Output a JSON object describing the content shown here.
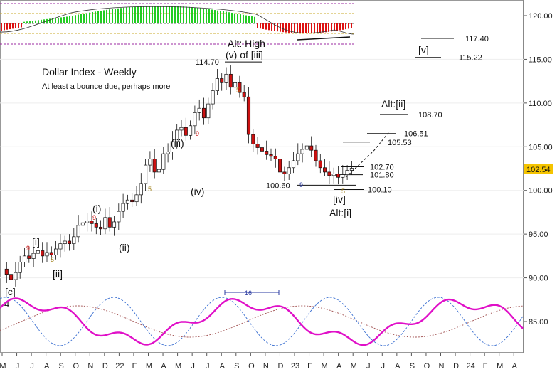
{
  "chart_data": {
    "type": "candlestick",
    "title": "Dollar Index - Weekly",
    "subtitle": "At least a bounce due, perhaps more",
    "ylim": [
      81,
      122
    ],
    "y_ticks": [
      "120.00",
      "115.00",
      "110.00",
      "105.00",
      "100.00",
      "95.00",
      "90.00",
      "85.00"
    ],
    "x_ticks": [
      "M",
      "J",
      "J",
      "A",
      "S",
      "O",
      "N",
      "D",
      "22",
      "F",
      "M",
      "A",
      "M",
      "J",
      "J",
      "A",
      "S",
      "O",
      "N",
      "D",
      "23",
      "F",
      "M",
      "A",
      "M",
      "J",
      "J",
      "A",
      "S",
      "O",
      "N",
      "D",
      "24",
      "F",
      "M",
      "A"
    ],
    "last_price": "102.54",
    "last_price_color": "#f5c400",
    "up_color": "#ffffff",
    "down_color": "#cc1111",
    "price_path": [
      {
        "x": 0,
        "y": 91.0
      },
      {
        "x": 1,
        "y": 90.4
      },
      {
        "x": 2,
        "y": 89.8
      },
      {
        "x": 3,
        "y": 90.6
      },
      {
        "x": 4,
        "y": 91.8
      },
      {
        "x": 5,
        "y": 92.5
      },
      {
        "x": 6,
        "y": 92.2
      },
      {
        "x": 7,
        "y": 92.8
      },
      {
        "x": 8,
        "y": 93.1
      },
      {
        "x": 9,
        "y": 92.5
      },
      {
        "x": 10,
        "y": 92.9
      },
      {
        "x": 11,
        "y": 92.6
      },
      {
        "x": 12,
        "y": 93.3
      },
      {
        "x": 13,
        "y": 93.9
      },
      {
        "x": 14,
        "y": 94.2
      },
      {
        "x": 15,
        "y": 93.9
      },
      {
        "x": 16,
        "y": 94.7
      },
      {
        "x": 17,
        "y": 96.0
      },
      {
        "x": 18,
        "y": 96.3
      },
      {
        "x": 19,
        "y": 96.5
      },
      {
        "x": 20,
        "y": 96.2
      },
      {
        "x": 21,
        "y": 95.8
      },
      {
        "x": 22,
        "y": 95.6
      },
      {
        "x": 23,
        "y": 96.9
      },
      {
        "x": 24,
        "y": 95.8
      },
      {
        "x": 25,
        "y": 96.4
      },
      {
        "x": 26,
        "y": 97.6
      },
      {
        "x": 27,
        "y": 98.5
      },
      {
        "x": 28,
        "y": 98.9
      },
      {
        "x": 29,
        "y": 98.7
      },
      {
        "x": 30,
        "y": 99.5
      },
      {
        "x": 31,
        "y": 100.8
      },
      {
        "x": 32,
        "y": 102.9
      },
      {
        "x": 33,
        "y": 103.6
      },
      {
        "x": 34,
        "y": 102.1
      },
      {
        "x": 35,
        "y": 102.4
      },
      {
        "x": 36,
        "y": 104.2
      },
      {
        "x": 37,
        "y": 104.4
      },
      {
        "x": 38,
        "y": 105.6
      },
      {
        "x": 39,
        "y": 106.9
      },
      {
        "x": 40,
        "y": 107.2
      },
      {
        "x": 41,
        "y": 106.3
      },
      {
        "x": 42,
        "y": 107.4
      },
      {
        "x": 43,
        "y": 108.9
      },
      {
        "x": 44,
        "y": 109.4
      },
      {
        "x": 45,
        "y": 108.3
      },
      {
        "x": 46,
        "y": 109.9
      },
      {
        "x": 47,
        "y": 111.4
      },
      {
        "x": 48,
        "y": 112.8
      },
      {
        "x": 49,
        "y": 112.4
      },
      {
        "x": 50,
        "y": 113.3
      },
      {
        "x": 51,
        "y": 111.8
      },
      {
        "x": 52,
        "y": 112.4
      },
      {
        "x": 53,
        "y": 111.2
      },
      {
        "x": 54,
        "y": 110.7
      },
      {
        "x": 55,
        "y": 106.4
      },
      {
        "x": 56,
        "y": 105.3
      },
      {
        "x": 57,
        "y": 104.9
      },
      {
        "x": 58,
        "y": 104.5
      },
      {
        "x": 59,
        "y": 104.1
      },
      {
        "x": 60,
        "y": 103.9
      },
      {
        "x": 61,
        "y": 103.6
      },
      {
        "x": 62,
        "y": 102.1
      },
      {
        "x": 63,
        "y": 101.9
      },
      {
        "x": 64,
        "y": 102.6
      },
      {
        "x": 65,
        "y": 103.4
      },
      {
        "x": 66,
        "y": 104.2
      },
      {
        "x": 67,
        "y": 104.7
      },
      {
        "x": 68,
        "y": 105.1
      },
      {
        "x": 69,
        "y": 104.6
      },
      {
        "x": 70,
        "y": 103.4
      },
      {
        "x": 71,
        "y": 102.6
      },
      {
        "x": 72,
        "y": 102.1
      },
      {
        "x": 73,
        "y": 101.7
      },
      {
        "x": 74,
        "y": 101.9
      },
      {
        "x": 75,
        "y": 101.5
      },
      {
        "x": 76,
        "y": 101.8
      },
      {
        "x": 77,
        "y": 102.3
      },
      {
        "x": 78,
        "y": 102.54
      }
    ],
    "levels": [
      {
        "label": "117.40",
        "value": 117.4
      },
      {
        "label": "115.22",
        "value": 115.22
      },
      {
        "label": "108.70",
        "value": 108.7
      },
      {
        "label": "106.51",
        "value": 106.51
      },
      {
        "label": "105.53",
        "value": 105.53
      },
      {
        "label": "102.70",
        "value": 102.7
      },
      {
        "label": "101.80",
        "value": 101.8
      },
      {
        "label": "100.10",
        "value": 100.1
      },
      {
        "label": "100.60",
        "value": 100.6
      },
      {
        "label": "114.70",
        "value": 114.7
      }
    ],
    "wave_labels": [
      "[c]",
      "4",
      "[i]",
      "[ii]",
      "(i)",
      "(ii)",
      "(iii)",
      "(iv)",
      "Alt: High",
      "(v) of [iii]",
      "[iv]",
      "Alt:[i]",
      "Alt:[ii]",
      "[v]"
    ],
    "count_marks": [
      "9",
      "5",
      "9",
      "5",
      "9",
      "5",
      "9",
      "5"
    ],
    "cycle_marker": "16",
    "oscillator_colors": {
      "primary": "#e010c8",
      "fast": "#3a6fd1",
      "slow": "#a05050"
    },
    "histogram_colors": {
      "positive": "#22cc22",
      "negative": "#dd1111"
    }
  }
}
